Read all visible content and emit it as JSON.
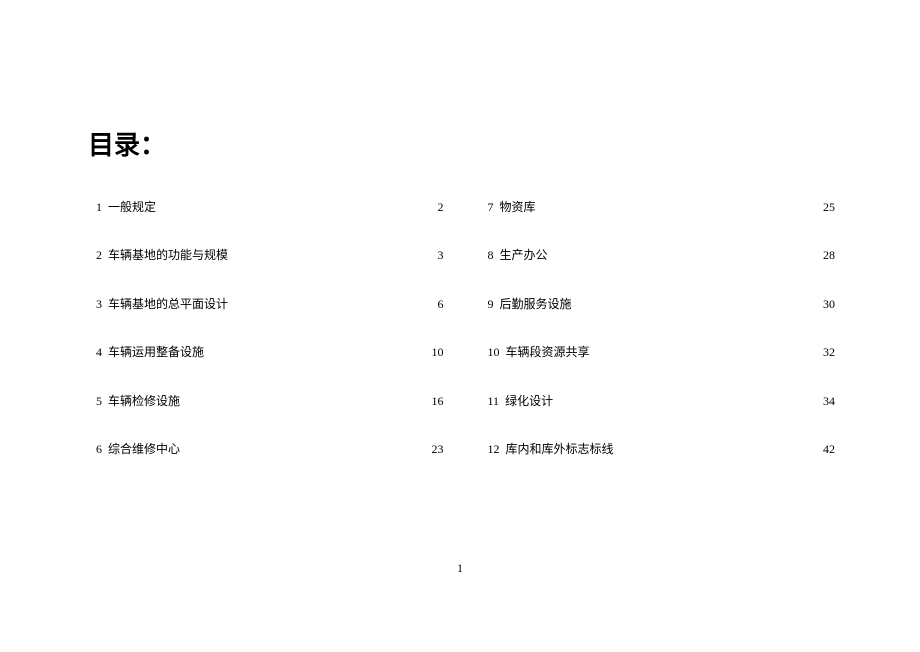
{
  "title": "目录：",
  "page_number": "1",
  "left_column": [
    {
      "num": "1",
      "label": "一般规定",
      "page": "2"
    },
    {
      "num": "2",
      "label": "车辆基地的功能与规模",
      "page": "3"
    },
    {
      "num": "3",
      "label": "车辆基地的总平面设计",
      "page": "6"
    },
    {
      "num": "4",
      "label": "车辆运用整备设施",
      "page": "10"
    },
    {
      "num": "5",
      "label": "车辆检修设施",
      "page": "16"
    },
    {
      "num": "6",
      "label": "综合维修中心",
      "page": "23"
    }
  ],
  "right_column": [
    {
      "num": "7",
      "label": "物资库",
      "page": "25"
    },
    {
      "num": "8",
      "label": "生产办公",
      "page": "28"
    },
    {
      "num": "9",
      "label": "后勤服务设施",
      "page": "30"
    },
    {
      "num": "10",
      "label": "车辆段资源共享",
      "page": "32"
    },
    {
      "num": "11",
      "label": "绿化设计",
      "page": "34"
    },
    {
      "num": "12",
      "label": "库内和库外标志标线",
      "page": "42"
    }
  ]
}
